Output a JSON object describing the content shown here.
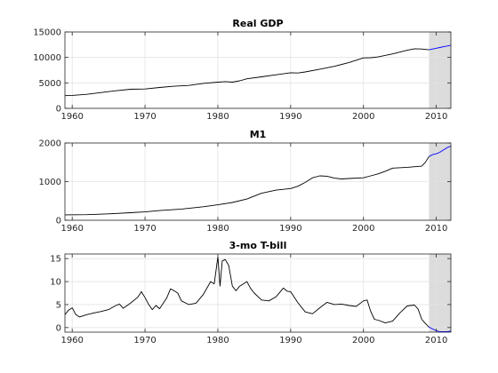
{
  "chart_data": [
    {
      "type": "line",
      "title": "Real GDP",
      "xlim": [
        1959,
        2012
      ],
      "ylim": [
        0,
        15000
      ],
      "xticks": [
        1960,
        1970,
        1980,
        1990,
        2000,
        2010
      ],
      "yticks": [
        0,
        5000,
        10000,
        15000
      ],
      "grid": true,
      "shaded_region": [
        2009,
        2012
      ],
      "series": [
        {
          "color": "#000000",
          "x": [
            1959,
            1960,
            1962,
            1964,
            1966,
            1968,
            1970,
            1972,
            1974,
            1976,
            1978,
            1980,
            1981,
            1982,
            1983,
            1984,
            1986,
            1988,
            1990,
            1991,
            1992,
            1994,
            1996,
            1998,
            2000,
            2001,
            2002,
            2004,
            2006,
            2007,
            2008,
            2009
          ],
          "y": [
            2500,
            2550,
            2750,
            3100,
            3450,
            3750,
            3800,
            4100,
            4350,
            4500,
            4900,
            5150,
            5250,
            5150,
            5400,
            5800,
            6200,
            6600,
            7000,
            6950,
            7150,
            7700,
            8250,
            9000,
            9900,
            9950,
            10100,
            10700,
            11400,
            11700,
            11650,
            11500
          ]
        },
        {
          "color": "#0000ff",
          "x": [
            2009,
            2009.5,
            2010,
            2010.5,
            2011,
            2011.5,
            2012
          ],
          "y": [
            11500,
            11650,
            11800,
            11950,
            12100,
            12250,
            12400
          ]
        }
      ]
    },
    {
      "type": "line",
      "title": "M1",
      "xlim": [
        1959,
        2012
      ],
      "ylim": [
        0,
        2000
      ],
      "xticks": [
        1960,
        1970,
        1980,
        1990,
        2000,
        2010
      ],
      "yticks": [
        0,
        1000,
        2000
      ],
      "grid": true,
      "shaded_region": [
        2009,
        2012
      ],
      "series": [
        {
          "color": "#000000",
          "x": [
            1959,
            1962,
            1965,
            1968,
            1970,
            1972,
            1975,
            1978,
            1980,
            1982,
            1984,
            1986,
            1988,
            1990,
            1991,
            1992,
            1993,
            1994,
            1995,
            1996,
            1997,
            1998,
            2000,
            2001,
            2002,
            2003,
            2004,
            2006,
            2008,
            2008.5,
            2009
          ],
          "y": [
            140,
            145,
            165,
            195,
            215,
            250,
            290,
            350,
            400,
            460,
            550,
            700,
            780,
            820,
            880,
            980,
            1100,
            1150,
            1140,
            1090,
            1070,
            1080,
            1100,
            1150,
            1200,
            1270,
            1350,
            1370,
            1400,
            1500,
            1650
          ]
        },
        {
          "color": "#0000ff",
          "x": [
            2009,
            2009.5,
            2010,
            2010.5,
            2011,
            2011.5,
            2012
          ],
          "y": [
            1650,
            1700,
            1720,
            1760,
            1820,
            1880,
            1920
          ]
        }
      ]
    },
    {
      "type": "line",
      "title": "3-mo T-bill",
      "xlim": [
        1959,
        2012
      ],
      "ylim": [
        -1,
        16
      ],
      "xticks": [
        1960,
        1970,
        1980,
        1990,
        2000,
        2010
      ],
      "yticks": [
        0,
        5,
        10,
        15
      ],
      "grid": true,
      "shaded_region": [
        2009,
        2012
      ],
      "series": [
        {
          "color": "#000000",
          "x": [
            1959,
            1959.5,
            1960,
            1960.5,
            1961,
            1962,
            1963,
            1964,
            1965,
            1966,
            1966.5,
            1967,
            1968,
            1969,
            1969.5,
            1970,
            1970.5,
            1971,
            1971.5,
            1972,
            1973,
            1973.5,
            1974,
            1974.5,
            1975,
            1976,
            1977,
            1978,
            1979,
            1979.5,
            1980,
            1980.3,
            1980.6,
            1981,
            1981.5,
            1982,
            1982.5,
            1983,
            1984,
            1984.5,
            1985,
            1986,
            1987,
            1988,
            1989,
            1989.5,
            1990,
            1991,
            1992,
            1993,
            1994,
            1995,
            1996,
            1997,
            1998,
            1999,
            2000,
            2000.5,
            2001,
            2001.5,
            2002,
            2003,
            2004,
            2005,
            2006,
            2007,
            2007.5,
            2008,
            2008.5,
            2009
          ],
          "y": [
            2.8,
            3.8,
            4.3,
            2.8,
            2.3,
            2.8,
            3.2,
            3.5,
            3.9,
            4.8,
            5.1,
            4.2,
            5.3,
            6.6,
            7.8,
            6.5,
            5.0,
            3.9,
            4.8,
            4.1,
            6.5,
            8.4,
            8.0,
            7.5,
            5.8,
            5.0,
            5.3,
            7.2,
            10.0,
            9.5,
            15.4,
            9.0,
            14.5,
            14.8,
            13.5,
            9.0,
            8.0,
            9.0,
            10.0,
            8.5,
            7.5,
            6.0,
            5.8,
            6.7,
            8.6,
            7.9,
            7.8,
            5.4,
            3.4,
            3.0,
            4.3,
            5.5,
            5.0,
            5.1,
            4.8,
            4.6,
            5.8,
            6.0,
            3.5,
            1.8,
            1.6,
            1.0,
            1.4,
            3.2,
            4.7,
            4.9,
            4.0,
            1.8,
            0.9,
            0.1
          ]
        },
        {
          "color": "#0000ff",
          "x": [
            2009,
            2009.5,
            2010,
            2010.5,
            2011,
            2011.5,
            2012
          ],
          "y": [
            0.1,
            -0.3,
            -0.7,
            -0.9,
            -0.9,
            -0.9,
            -0.8
          ]
        }
      ]
    }
  ]
}
